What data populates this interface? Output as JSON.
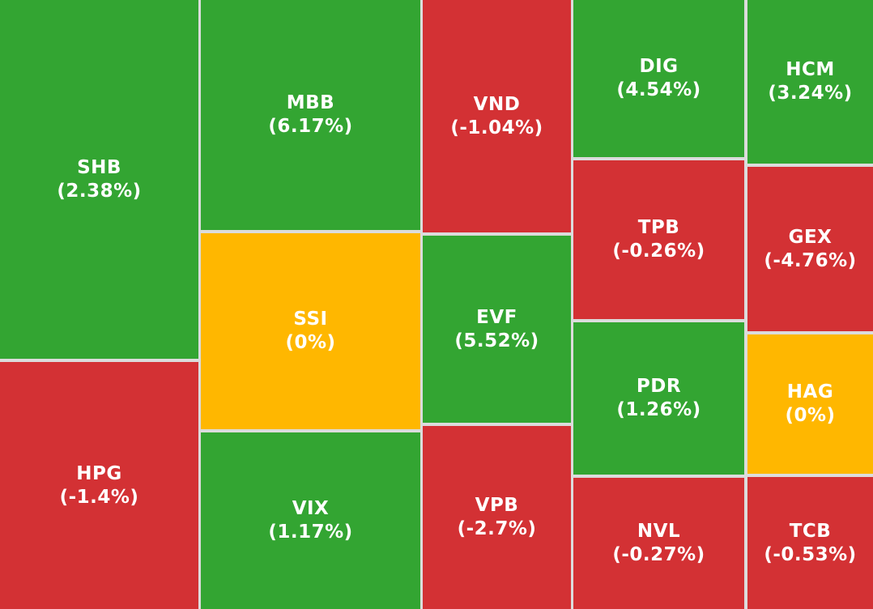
{
  "tiles": [
    {
      "ticker": "SHB",
      "change": "(2.38%)",
      "color": "#33a532"
    },
    {
      "ticker": "HPG",
      "change": "(-1.4%)",
      "color": "#d33134"
    },
    {
      "ticker": "MBB",
      "change": "(6.17%)",
      "color": "#33a532"
    },
    {
      "ticker": "SSI",
      "change": "(0%)",
      "color": "#ffb700"
    },
    {
      "ticker": "VIX",
      "change": "(1.17%)",
      "color": "#33a532"
    },
    {
      "ticker": "VND",
      "change": "(-1.04%)",
      "color": "#d33134"
    },
    {
      "ticker": "EVF",
      "change": "(5.52%)",
      "color": "#33a532"
    },
    {
      "ticker": "VPB",
      "change": "(-2.7%)",
      "color": "#d33134"
    },
    {
      "ticker": "DIG",
      "change": "(4.54%)",
      "color": "#33a532"
    },
    {
      "ticker": "TPB",
      "change": "(-0.26%)",
      "color": "#d33134"
    },
    {
      "ticker": "PDR",
      "change": "(1.26%)",
      "color": "#33a532"
    },
    {
      "ticker": "NVL",
      "change": "(-0.27%)",
      "color": "#d33134"
    },
    {
      "ticker": "HCM",
      "change": "(3.24%)",
      "color": "#33a532"
    },
    {
      "ticker": "GEX",
      "change": "(-4.76%)",
      "color": "#d33134"
    },
    {
      "ticker": "HAG",
      "change": "(0%)",
      "color": "#ffb700"
    },
    {
      "ticker": "TCB",
      "change": "(-0.53%)",
      "color": "#d33134"
    }
  ]
}
